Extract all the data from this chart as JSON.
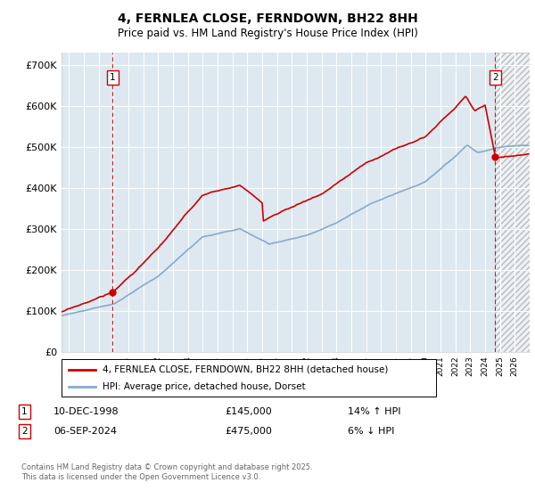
{
  "title": "4, FERNLEA CLOSE, FERNDOWN, BH22 8HH",
  "subtitle": "Price paid vs. HM Land Registry's House Price Index (HPI)",
  "ylim": [
    0,
    730000
  ],
  "yticks": [
    0,
    100000,
    200000,
    300000,
    400000,
    500000,
    600000,
    700000
  ],
  "ytick_labels": [
    "£0",
    "£100K",
    "£200K",
    "£300K",
    "£400K",
    "£500K",
    "£600K",
    "£700K"
  ],
  "xlim_start": 1995.5,
  "xlim_end": 2027.0,
  "transaction1": {
    "year": 1998.95,
    "price": 145000,
    "label": "1"
  },
  "transaction2": {
    "year": 2024.68,
    "price": 475000,
    "label": "2"
  },
  "legend_line1": "4, FERNLEA CLOSE, FERNDOWN, BH22 8HH (detached house)",
  "legend_line2": "HPI: Average price, detached house, Dorset",
  "footer": "Contains HM Land Registry data © Crown copyright and database right 2025.\nThis data is licensed under the Open Government Licence v3.0.",
  "table_row1_label": "1",
  "table_row1_date": "10-DEC-1998",
  "table_row1_price": "£145,000",
  "table_row1_hpi": "14% ↑ HPI",
  "table_row2_label": "2",
  "table_row2_date": "06-SEP-2024",
  "table_row2_price": "£475,000",
  "table_row2_hpi": "6% ↓ HPI",
  "red_color": "#cc0000",
  "blue_color": "#88aacc",
  "grid_color": "#cccccc",
  "bg_color": "#dde8f0"
}
